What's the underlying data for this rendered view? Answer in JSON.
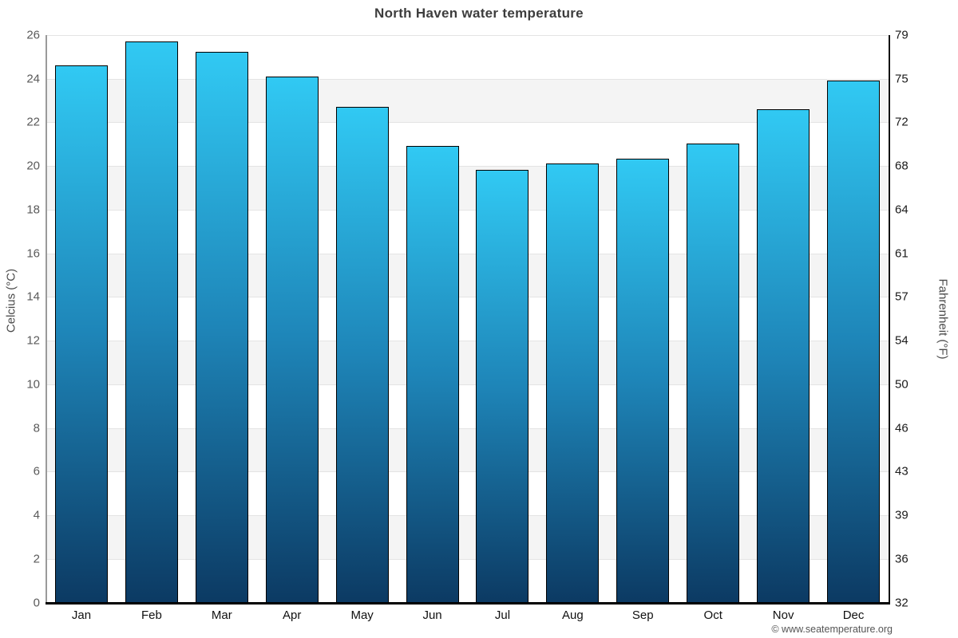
{
  "title": "North Haven water temperature",
  "footer": {
    "credit": "© www.seatemperature.org"
  },
  "chart_data": {
    "type": "bar",
    "title": "North Haven water temperature",
    "categories": [
      "Jan",
      "Feb",
      "Mar",
      "Apr",
      "May",
      "Jun",
      "Jul",
      "Aug",
      "Sep",
      "Oct",
      "Nov",
      "Dec"
    ],
    "values": [
      24.6,
      25.7,
      25.2,
      24.1,
      22.7,
      20.9,
      19.8,
      20.1,
      20.3,
      21.0,
      22.6,
      23.9
    ],
    "series_name": "Water temperature",
    "xlabel": "",
    "ylabel_left": "Celcius (°C)",
    "ylabel_right": "Fahrenheit (°F)",
    "ylim": [
      0,
      26
    ],
    "y_left_ticks": [
      "26",
      "24",
      "22",
      "20",
      "18",
      "16",
      "14",
      "12",
      "10",
      "8",
      "6",
      "4",
      "2",
      "0"
    ],
    "y_right_ticks": [
      "79",
      "75",
      "72",
      "68",
      "64",
      "61",
      "57",
      "54",
      "50",
      "46",
      "43",
      "39",
      "36",
      "32"
    ],
    "grid": "horizontal alternating bands every 2°C",
    "legend": "none",
    "colors": {
      "bar_gradient_top": "#31c9f3",
      "bar_gradient_mid": "#1e85b8",
      "bar_gradient_bottom": "#0c3a63",
      "bar_border": "#000000",
      "band_shaded": "#f4f4f4",
      "band_plain": "#ffffff",
      "gridline": "#e4e4e4",
      "axis_left": "#9a9a9a",
      "axis_right": "#111111",
      "axis_bottom": "#000000",
      "title_text": "#3d3d3d",
      "left_tick_text": "#5a5a5a",
      "right_tick_text": "#1a1a1a",
      "month_text": "#111111",
      "credit_text": "#555555"
    }
  }
}
